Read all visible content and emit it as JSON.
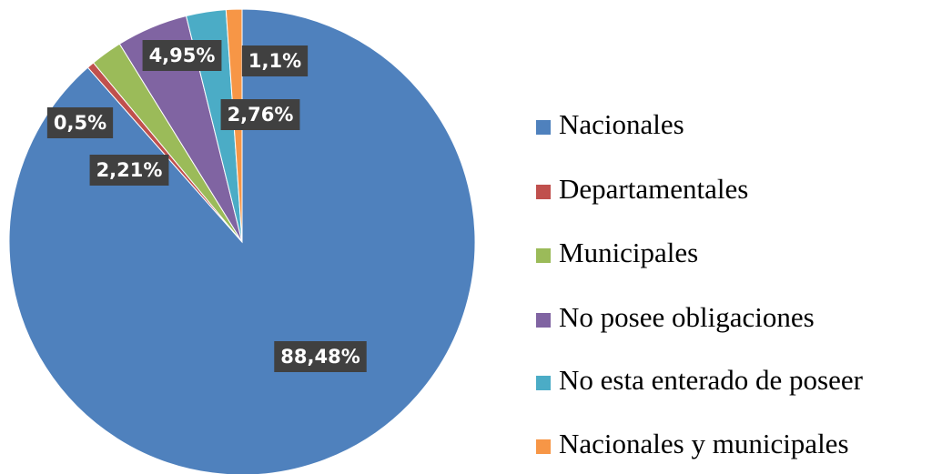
{
  "chart_data": {
    "type": "pie",
    "categories": [
      "Nacionales",
      "Departamentales",
      "Municipales",
      "No posee obligaciones",
      "No esta enterado de poseer",
      "Nacionales y municipales"
    ],
    "values": [
      88.48,
      0.5,
      2.21,
      4.95,
      2.76,
      1.1
    ],
    "value_labels": [
      "88,48%",
      "0,5%",
      "2,21%",
      "4,95%",
      "2,76%",
      "1,1%"
    ],
    "colors": [
      "#4f81bd",
      "#c0504d",
      "#9bbb59",
      "#8064a2",
      "#4bacc6",
      "#f79646"
    ],
    "legend": "right"
  }
}
